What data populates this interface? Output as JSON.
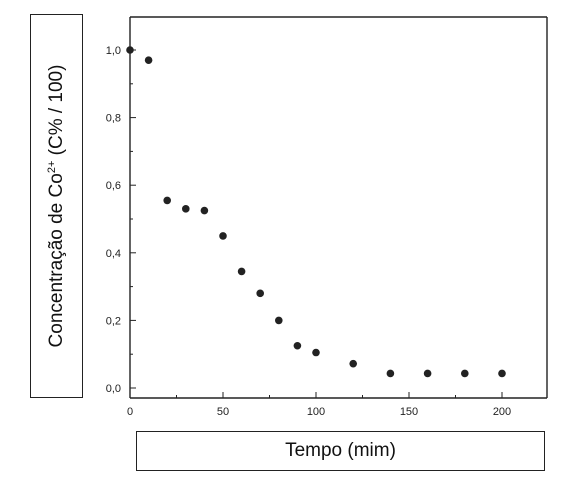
{
  "chart_data": {
    "type": "scatter",
    "title": "",
    "xlabel": "Tempo (mim)",
    "ylabel_main": "Concentração de Co",
    "ylabel_sup": "2+",
    "ylabel_tail": " (C% / 100)",
    "xlim": [
      0,
      225
    ],
    "ylim": [
      0,
      1.1
    ],
    "x_ticks": [
      0,
      50,
      100,
      150,
      200
    ],
    "x_tick_labels": [
      "0",
      "50",
      "100",
      "150",
      "200"
    ],
    "y_ticks": [
      0,
      0.2,
      0.4,
      0.6,
      0.8,
      1.0
    ],
    "y_tick_labels": [
      "0,0",
      "0,2",
      "0,4",
      "0,6",
      "0,8",
      "1,0"
    ],
    "grid": false,
    "marker_color": "#222222",
    "x": [
      0,
      10,
      20,
      30,
      40,
      50,
      60,
      70,
      80,
      90,
      100,
      120,
      140,
      160,
      180,
      200
    ],
    "y": [
      1.0,
      0.97,
      0.555,
      0.53,
      0.525,
      0.45,
      0.345,
      0.28,
      0.2,
      0.125,
      0.105,
      0.072,
      0.043,
      0.043,
      0.043,
      0.043
    ]
  }
}
